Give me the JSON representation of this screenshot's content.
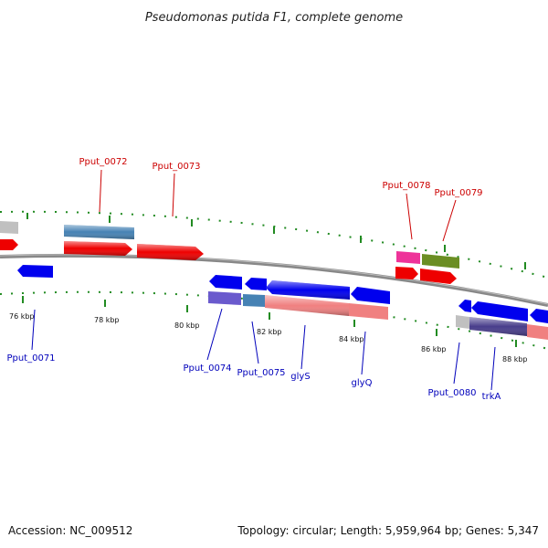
{
  "title": "Pseudomonas putida F1, complete genome",
  "footer": {
    "accession": "Accession: NC_009512",
    "summary": "Topology: circular; Length: 5,959,964 bp; Genes: 5,347"
  },
  "ticks": [
    "76 kbp",
    "78 kbp",
    "80 kbp",
    "82 kbp",
    "84 kbp",
    "86 kbp",
    "88 kbp"
  ],
  "labels": {
    "top": [
      "Pput_0072",
      "Pput_0073",
      "Pput_0078",
      "Pput_0079"
    ],
    "bottom": [
      "Pput_0071",
      "Pput_0074",
      "Pput_0075",
      "glyS",
      "glyQ",
      "Pput_0080",
      "trkA"
    ]
  },
  "colors": {
    "forward_cds": "#ee0000",
    "reverse_cds": "#0000ee",
    "forward_gene_label": "#cc0000",
    "reverse_gene_label": "#0000bb",
    "backbone": "#888888",
    "tick_marks": "#228b22",
    "cog_steelblue": "#4682b4",
    "cog_gray": "#c0c0c0",
    "cog_pink": "#ee3399",
    "cog_olive": "#6b8e23",
    "cog_salmon": "#f08080",
    "cog_slateblue": "#6a5acd",
    "cog_darkslate": "#483d8b"
  }
}
